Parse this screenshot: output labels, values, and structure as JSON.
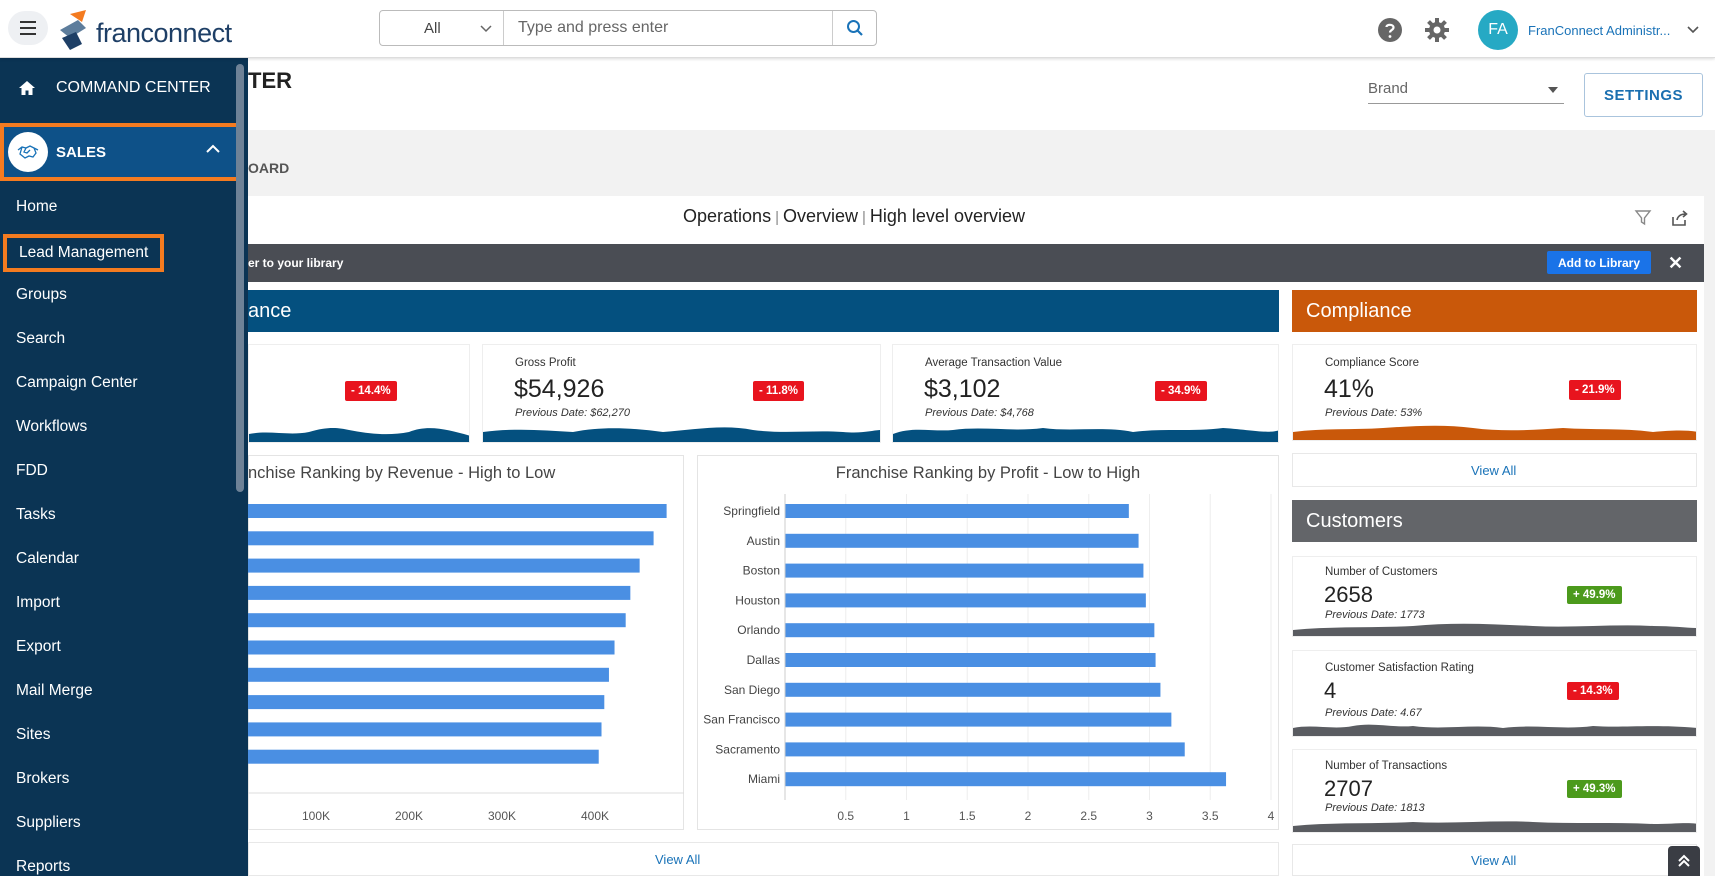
{
  "topbar": {
    "logo_text": "franconnect",
    "search_scope": "All",
    "search_placeholder": "Type and press enter",
    "avatar_initials": "FA",
    "user_name": "FranConnect Administr..."
  },
  "sidebar": {
    "command_center": "COMMAND CENTER",
    "section": "SALES",
    "items": [
      "Home",
      "Lead Management",
      "Groups",
      "Search",
      "Campaign Center",
      "Workflows",
      "FDD",
      "Tasks",
      "Calendar",
      "Import",
      "Export",
      "Mail Merge",
      "Sites",
      "Brokers",
      "Suppliers",
      "Reports"
    ]
  },
  "header": {
    "title_fragment": "TER",
    "brand_placeholder": "Brand",
    "settings_label": "SETTINGS",
    "breadcrumb_fragment": "OARD"
  },
  "dashboard": {
    "title_parts": [
      "Operations",
      "Overview",
      "High level overview"
    ],
    "library_text": "er to your library",
    "add_library_label": "Add to Library",
    "close_label": "✕"
  },
  "finance": {
    "header": "ance",
    "kpis": [
      {
        "title": "",
        "value": "",
        "previous": "",
        "delta": "- 14.4%",
        "trend": "down"
      },
      {
        "title": "Gross Profit",
        "value": "$54,926",
        "previous": "Previous Date: $62,270",
        "delta": "- 11.8%",
        "trend": "down"
      },
      {
        "title": "Average Transaction Value",
        "value": "$3,102",
        "previous": "Previous Date: $4,768",
        "delta": "- 34.9%",
        "trend": "down"
      }
    ],
    "view_all": "View All"
  },
  "compliance": {
    "header": "Compliance",
    "kpi": {
      "title": "Compliance Score",
      "value": "41%",
      "previous": "Previous Date: 53%",
      "delta": "- 21.9%",
      "trend": "down"
    },
    "view_all": "View All"
  },
  "customers": {
    "header": "Customers",
    "kpis": [
      {
        "title": "Number of Customers",
        "value": "2658",
        "previous": "Previous Date: 1773",
        "delta": "+ 49.9%",
        "trend": "up"
      },
      {
        "title": "Customer Satisfaction Rating",
        "value": "4",
        "previous": "Previous Date: 4.67",
        "delta": "- 14.3%",
        "trend": "down"
      },
      {
        "title": "Number of Transactions",
        "value": "2707",
        "previous": "Previous Date: 1813",
        "delta": "+ 49.3%",
        "trend": "up"
      }
    ],
    "view_all": "View All"
  },
  "colors": {
    "finance": "#04507f",
    "compliance": "#c9580a",
    "customers": "#636569",
    "bar": "#4a8fe3"
  },
  "chart_data": [
    {
      "type": "bar",
      "orientation": "horizontal",
      "title": "nchise Ranking by Revenue - High to Low",
      "x_tick_labels": [
        "100K",
        "200K",
        "300K",
        "400K"
      ],
      "values": [
        477000,
        463000,
        448000,
        438000,
        433000,
        421000,
        415000,
        410000,
        407000,
        404000
      ]
    },
    {
      "type": "bar",
      "orientation": "horizontal",
      "title": "Franchise Ranking by Profit - Low to High",
      "categories": [
        "Springfield",
        "Austin",
        "Boston",
        "Houston",
        "Orlando",
        "Dallas",
        "San Diego",
        "San Francisco",
        "Sacramento",
        "Miami"
      ],
      "values": [
        2.83,
        2.91,
        2.95,
        2.97,
        3.04,
        3.05,
        3.09,
        3.18,
        3.29,
        3.63
      ],
      "x_tick_labels": [
        "0.5",
        "1",
        "1.5",
        "2",
        "2.5",
        "3",
        "3.5",
        "4"
      ],
      "xlim": [
        0,
        4
      ]
    }
  ]
}
